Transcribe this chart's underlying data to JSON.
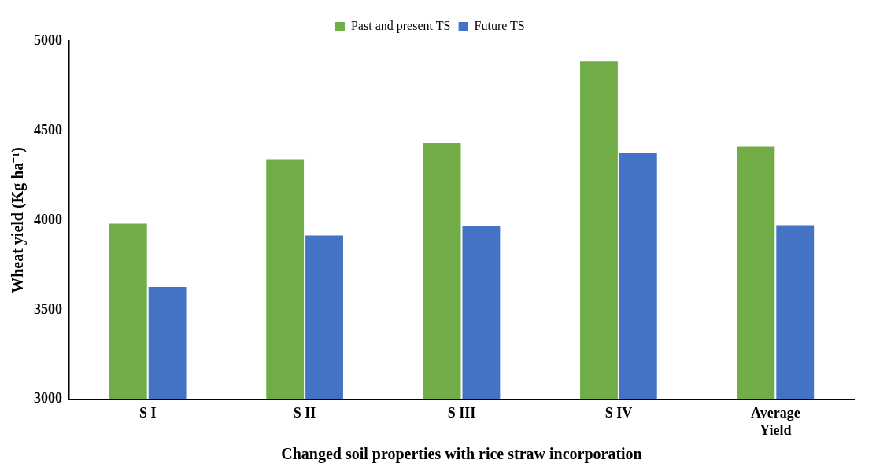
{
  "chart_data": {
    "type": "bar",
    "xlabel": "Changed soil properties with rice straw incorporation",
    "ylabel": "Wheat yield (Kg ha⁻¹)",
    "categories": [
      "S I",
      "S II",
      "S III",
      "S IV",
      "Average Yield"
    ],
    "series": [
      {
        "name": "Past and present TS",
        "color": "#70ad47",
        "values": [
          3980,
          4340,
          4430,
          4885,
          4410
        ]
      },
      {
        "name": "Future TS",
        "color": "#4472c4",
        "values": [
          3627,
          3914,
          3967,
          4373,
          3971
        ]
      }
    ],
    "ylim": [
      3000,
      5000
    ],
    "yticks": [
      3000,
      3500,
      4000,
      4500,
      5000
    ],
    "grid": false,
    "legend": "top"
  }
}
